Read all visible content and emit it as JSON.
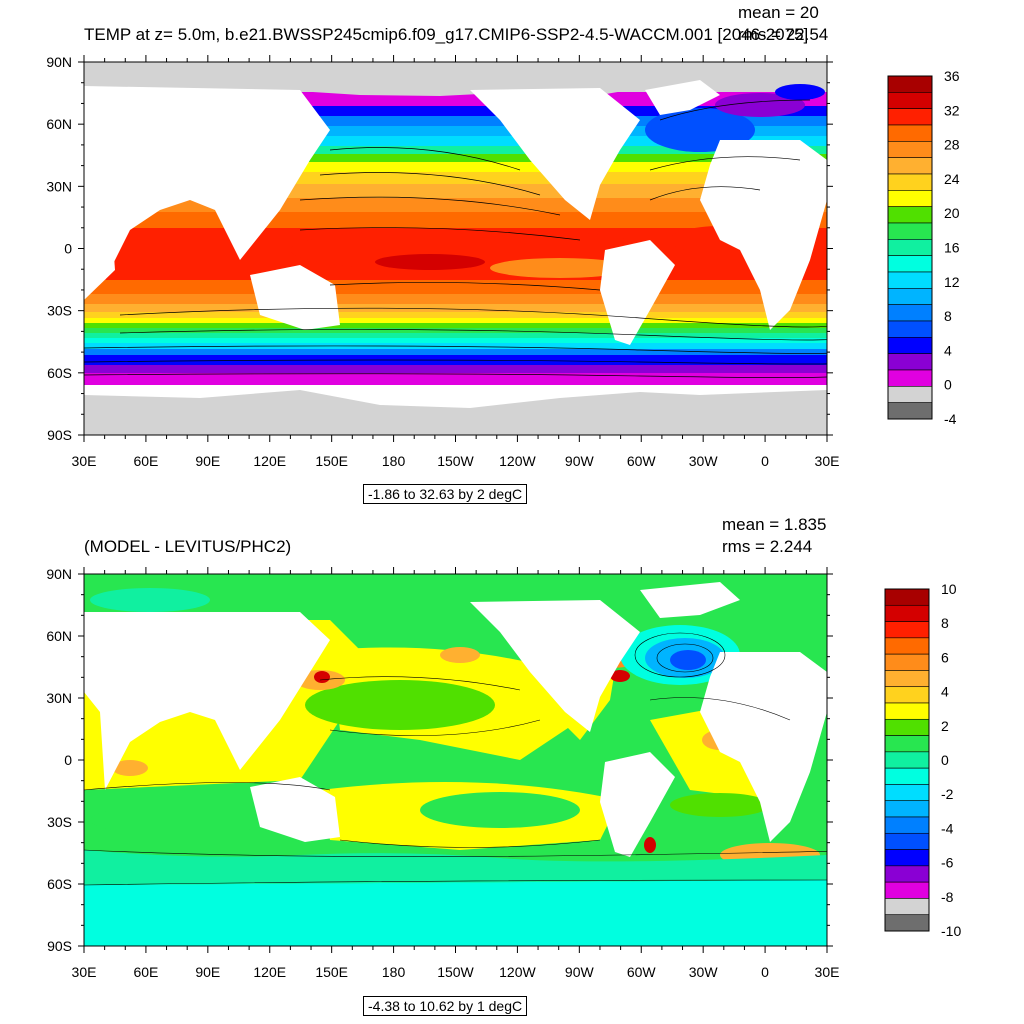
{
  "panels": [
    {
      "title": "TEMP at z=   5.0m, b.e21.BWSSP245cmip6.f09_g17.CMIP6-SSP2-4.5-WACCM.001 [2046-2075]",
      "mean": "mean = 20",
      "rms": "rms = 22.54",
      "range": "-1.86 to 32.63 by 2 degC",
      "lat_ticks": [
        "90N",
        "60N",
        "30N",
        "0",
        "30S",
        "60S",
        "90S"
      ],
      "lon_ticks": [
        "30E",
        "60E",
        "90E",
        "120E",
        "150E",
        "180",
        "150W",
        "120W",
        "90W",
        "60W",
        "30W",
        "0",
        "30E"
      ],
      "colorbar": {
        "labels": [
          "36",
          "32",
          "28",
          "24",
          "20",
          "16",
          "12",
          "8",
          "4",
          "0",
          "-4"
        ],
        "colors": [
          "#a80000",
          "#d40000",
          "#ff2000",
          "#ff6a00",
          "#ff8c1a",
          "#ffb030",
          "#ffd21e",
          "#ffff00",
          "#50e000",
          "#28e650",
          "#10f0a0",
          "#00ffe0",
          "#00ddff",
          "#00b4ff",
          "#0080ff",
          "#0050ff",
          "#0000ff",
          "#8a00d4",
          "#e000e0",
          "#d3d3d3",
          "#6e6e6e"
        ]
      }
    },
    {
      "title": "(MODEL - LEVITUS/PHC2)",
      "mean": "mean = 1.835",
      "rms": "rms = 2.244",
      "range": "-4.38 to 10.62 by 1 degC",
      "lat_ticks": [
        "90N",
        "60N",
        "30N",
        "0",
        "30S",
        "60S",
        "90S"
      ],
      "lon_ticks": [
        "30E",
        "60E",
        "90E",
        "120E",
        "150E",
        "180",
        "150W",
        "120W",
        "90W",
        "60W",
        "30W",
        "0",
        "30E"
      ],
      "colorbar": {
        "labels": [
          "10",
          "8",
          "6",
          "4",
          "2",
          "0",
          "-2",
          "-4",
          "-6",
          "-8",
          "-10"
        ],
        "colors": [
          "#a80000",
          "#d40000",
          "#ff2000",
          "#ff6a00",
          "#ff8c1a",
          "#ffb030",
          "#ffd21e",
          "#ffff00",
          "#50e000",
          "#28e650",
          "#10f0a0",
          "#00ffe0",
          "#00ddff",
          "#00b4ff",
          "#0080ff",
          "#0050ff",
          "#0000ff",
          "#8a00d4",
          "#e000e0",
          "#d3d3d3",
          "#6e6e6e"
        ]
      }
    }
  ]
}
